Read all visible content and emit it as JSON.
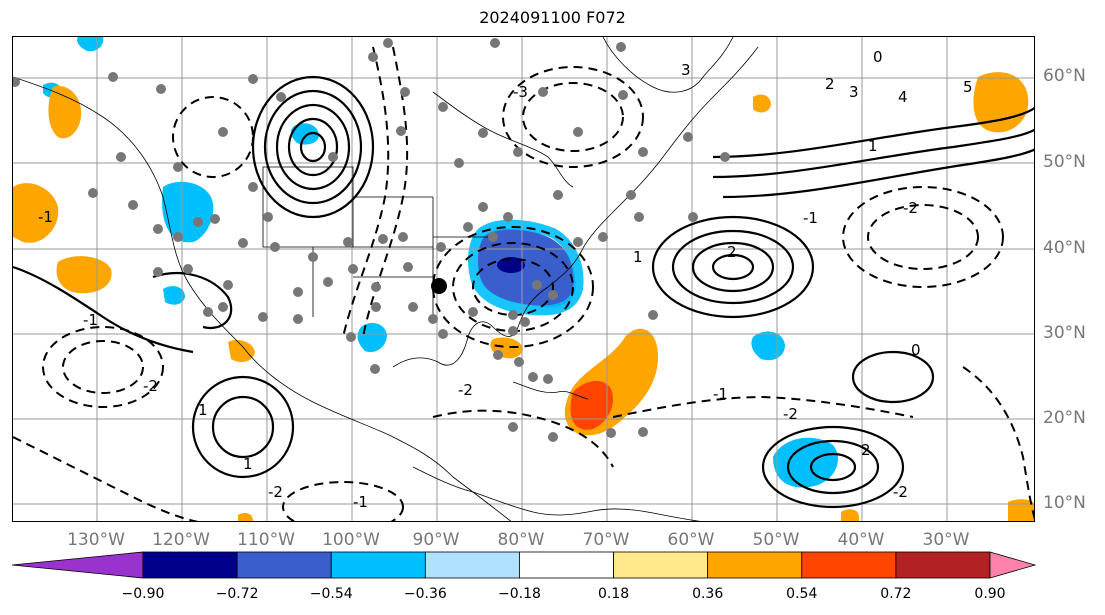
{
  "title": "2024091100 F072",
  "lat_labels": [
    "60°N",
    "50°N",
    "40°N",
    "30°N",
    "20°N",
    "10°N"
  ],
  "lon_labels": [
    "130°W",
    "120°W",
    "110°W",
    "100°W",
    "90°W",
    "80°W",
    "70°W",
    "60°W",
    "50°W",
    "40°W",
    "30°W"
  ],
  "colorbar": {
    "colors": [
      "#9a32cd",
      "#00008b",
      "#3a5fcd",
      "#00bfff",
      "#b0e2ff",
      "#ffffff",
      "#ffe98a",
      "#ffa500",
      "#ff4500",
      "#b22222",
      "#ff82ab"
    ],
    "tick_labels": [
      "−0.90",
      "−0.72",
      "−0.54",
      "−0.36",
      "−0.18",
      "0.18",
      "0.36",
      "0.54",
      "0.72",
      "0.90"
    ]
  },
  "contour_labels": {
    "positive": [
      "5",
      "4",
      "3",
      "2",
      "1",
      "0",
      "1",
      "2",
      "3",
      "1",
      "2",
      "0",
      "1"
    ],
    "negative": [
      "-2",
      "-1",
      "-3",
      "-2",
      "-1",
      "-2",
      "-1",
      "-2",
      "-1",
      "-2",
      "-2",
      "-1"
    ]
  }
}
